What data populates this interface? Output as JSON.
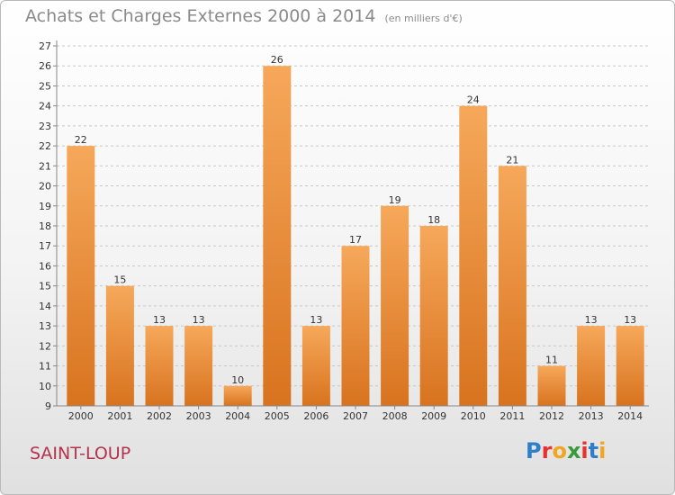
{
  "title": "Achats et Charges Externes 2000 à 2014",
  "subtitle": "(en milliers d'€)",
  "place": "SAINT-LOUP",
  "logo": {
    "letters": [
      {
        "ch": "P",
        "color": "#2f7ec9"
      },
      {
        "ch": "r",
        "color": "#e8302e"
      },
      {
        "ch": "o",
        "color": "#f2a51e"
      },
      {
        "ch": "x",
        "color": "#3a9a3a"
      },
      {
        "ch": "i",
        "color": "#e8302e"
      },
      {
        "ch": "t",
        "color": "#2f7ec9"
      },
      {
        "ch": "i",
        "color": "#f2a51e"
      }
    ]
  },
  "colors": {
    "bar_light": "#f6a85a",
    "bar_dark": "#d8731f",
    "axis": "#888888",
    "grid": "#c8c8c8",
    "label": "#333333"
  },
  "chart_data": {
    "type": "bar",
    "categories": [
      "2000",
      "2001",
      "2002",
      "2003",
      "2004",
      "2005",
      "2006",
      "2007",
      "2008",
      "2009",
      "2010",
      "2011",
      "2012",
      "2013",
      "2014"
    ],
    "values": [
      22,
      15,
      13,
      13,
      10,
      26,
      13,
      17,
      19,
      18,
      24,
      21,
      11,
      13,
      13
    ],
    "value_labels": [
      "22",
      "15",
      "13",
      "13",
      "10",
      "26",
      "13",
      "17",
      "19",
      "18",
      "24",
      "21",
      "11",
      "13",
      "13"
    ],
    "ylim": [
      9,
      27
    ],
    "yticks": [
      "27",
      "26",
      "25",
      "24",
      "23",
      "22",
      "21",
      "20",
      "19",
      "18",
      "17",
      "16",
      "15",
      "14",
      "13",
      "12",
      "11",
      "10",
      "9"
    ],
    "ytick_values": [
      27,
      26,
      25,
      24,
      23,
      22,
      21,
      20,
      19,
      18,
      17,
      16,
      15,
      14,
      13,
      12,
      11,
      10,
      9
    ],
    "grid": true
  }
}
